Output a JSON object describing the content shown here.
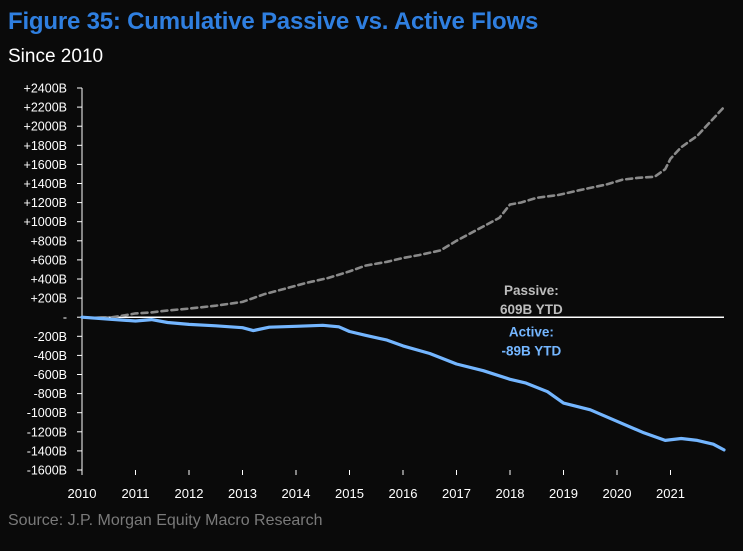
{
  "colors": {
    "background": "#0a0a0a",
    "title": "#2f7fe0",
    "active": "#74b6ff",
    "passive": "#8a8a8a",
    "passive_label": "#bdbdbd",
    "axis": "#ffffff",
    "source": "#7a7a7a"
  },
  "chart_data": {
    "type": "line",
    "title": "Figure 35: Cumulative Passive vs. Active Flows",
    "subtitle": "Since 2010",
    "source": "Source: J.P. Morgan Equity Macro Research",
    "xlabel": "",
    "ylabel": "",
    "xlim": [
      2010,
      2022
    ],
    "ylim": [
      -1600,
      2400
    ],
    "units": "B",
    "y_ticks": [
      {
        "value": 2400,
        "label": "+2400B"
      },
      {
        "value": 2200,
        "label": "+2200B"
      },
      {
        "value": 2000,
        "label": "+2000B"
      },
      {
        "value": 1800,
        "label": "+1800B"
      },
      {
        "value": 1600,
        "label": "+1600B"
      },
      {
        "value": 1400,
        "label": "+1400B"
      },
      {
        "value": 1200,
        "label": "+1200B"
      },
      {
        "value": 1000,
        "label": "+1000B"
      },
      {
        "value": 800,
        "label": "+800B"
      },
      {
        "value": 600,
        "label": "+600B"
      },
      {
        "value": 400,
        "label": "+400B"
      },
      {
        "value": 200,
        "label": "+200B"
      },
      {
        "value": 0,
        "label": "-"
      },
      {
        "value": -200,
        "label": "-200B"
      },
      {
        "value": -400,
        "label": "-400B"
      },
      {
        "value": -600,
        "label": "-600B"
      },
      {
        "value": -800,
        "label": "-800B"
      },
      {
        "value": -1000,
        "label": "-1000B"
      },
      {
        "value": -1200,
        "label": "-1200B"
      },
      {
        "value": -1400,
        "label": "-1400B"
      },
      {
        "value": -1600,
        "label": "-1600B"
      }
    ],
    "x_ticks": [
      {
        "value": 2010,
        "label": "2010"
      },
      {
        "value": 2011,
        "label": "2011"
      },
      {
        "value": 2012,
        "label": "2012"
      },
      {
        "value": 2013,
        "label": "2013"
      },
      {
        "value": 2014,
        "label": "2014"
      },
      {
        "value": 2015,
        "label": "2015"
      },
      {
        "value": 2016,
        "label": "2016"
      },
      {
        "value": 2017,
        "label": "2017"
      },
      {
        "value": 2018,
        "label": "2018"
      },
      {
        "value": 2019,
        "label": "2019"
      },
      {
        "value": 2020,
        "label": "2020"
      },
      {
        "value": 2021,
        "label": "2021"
      }
    ],
    "series": [
      {
        "name": "Passive",
        "style": "dashed",
        "label_lines": [
          "Passive:",
          "609B YTD"
        ],
        "label_at": {
          "x": 2018.4,
          "y": 230
        },
        "points": [
          [
            2010.0,
            0
          ],
          [
            2010.4,
            -15
          ],
          [
            2010.8,
            20
          ],
          [
            2011.0,
            40
          ],
          [
            2011.3,
            50
          ],
          [
            2011.6,
            70
          ],
          [
            2012.0,
            90
          ],
          [
            2012.5,
            120
          ],
          [
            2013.0,
            160
          ],
          [
            2013.4,
            240
          ],
          [
            2013.8,
            300
          ],
          [
            2014.2,
            360
          ],
          [
            2014.6,
            410
          ],
          [
            2015.0,
            480
          ],
          [
            2015.3,
            540
          ],
          [
            2015.7,
            580
          ],
          [
            2016.0,
            620
          ],
          [
            2016.3,
            650
          ],
          [
            2016.7,
            700
          ],
          [
            2017.0,
            800
          ],
          [
            2017.4,
            920
          ],
          [
            2017.8,
            1040
          ],
          [
            2018.0,
            1180
          ],
          [
            2018.2,
            1200
          ],
          [
            2018.5,
            1250
          ],
          [
            2018.9,
            1280
          ],
          [
            2019.3,
            1330
          ],
          [
            2019.8,
            1390
          ],
          [
            2020.1,
            1440
          ],
          [
            2020.4,
            1460
          ],
          [
            2020.7,
            1470
          ],
          [
            2020.9,
            1550
          ],
          [
            2021.0,
            1660
          ],
          [
            2021.2,
            1780
          ],
          [
            2021.5,
            1900
          ],
          [
            2021.8,
            2080
          ],
          [
            2022.0,
            2200
          ]
        ]
      },
      {
        "name": "Active",
        "style": "solid",
        "label_lines": [
          "Active:",
          "-89B YTD"
        ],
        "label_at": {
          "x": 2018.4,
          "y": -200
        },
        "points": [
          [
            2010.0,
            0
          ],
          [
            2010.5,
            -20
          ],
          [
            2011.0,
            -40
          ],
          [
            2011.3,
            -25
          ],
          [
            2011.6,
            -55
          ],
          [
            2012.0,
            -75
          ],
          [
            2012.5,
            -90
          ],
          [
            2013.0,
            -110
          ],
          [
            2013.2,
            -140
          ],
          [
            2013.5,
            -105
          ],
          [
            2014.0,
            -95
          ],
          [
            2014.5,
            -85
          ],
          [
            2014.8,
            -100
          ],
          [
            2015.0,
            -150
          ],
          [
            2015.3,
            -190
          ],
          [
            2015.7,
            -240
          ],
          [
            2016.0,
            -300
          ],
          [
            2016.5,
            -380
          ],
          [
            2017.0,
            -490
          ],
          [
            2017.5,
            -560
          ],
          [
            2018.0,
            -650
          ],
          [
            2018.3,
            -690
          ],
          [
            2018.7,
            -780
          ],
          [
            2019.0,
            -900
          ],
          [
            2019.5,
            -970
          ],
          [
            2020.0,
            -1090
          ],
          [
            2020.5,
            -1210
          ],
          [
            2020.9,
            -1290
          ],
          [
            2021.2,
            -1270
          ],
          [
            2021.5,
            -1290
          ],
          [
            2021.8,
            -1330
          ],
          [
            2022.0,
            -1390
          ]
        ]
      }
    ]
  }
}
